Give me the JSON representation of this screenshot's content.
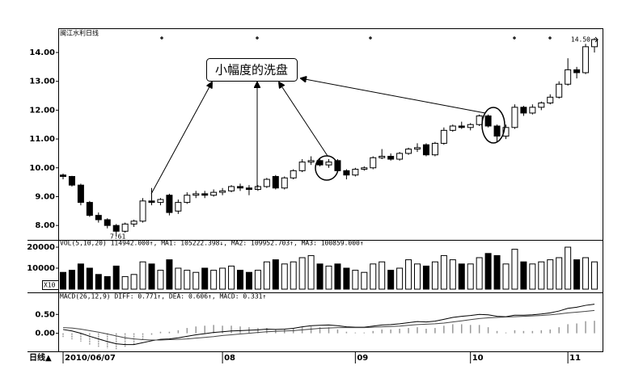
{
  "chart_data": [
    {
      "type": "candlestick",
      "title": "闽江水利日线",
      "categories": [
        "2010/06/07",
        null,
        null,
        null,
        null,
        null,
        null,
        null,
        null,
        null,
        null,
        null,
        null,
        null,
        null,
        null,
        null,
        null,
        "08",
        null,
        null,
        null,
        null,
        null,
        null,
        null,
        null,
        null,
        null,
        null,
        null,
        null,
        null,
        "09",
        null,
        null,
        null,
        null,
        null,
        null,
        null,
        null,
        null,
        null,
        null,
        null,
        "10",
        null,
        null,
        null,
        null,
        null,
        null,
        null,
        null,
        null,
        null,
        "11",
        null,
        null,
        null
      ],
      "open": [
        9.75,
        9.7,
        9.4,
        8.8,
        8.35,
        8.2,
        8.0,
        7.8,
        8.05,
        8.15,
        8.85,
        8.8,
        9.05,
        8.5,
        8.8,
        9.05,
        9.1,
        9.05,
        9.15,
        9.2,
        9.35,
        9.3,
        9.25,
        9.35,
        9.7,
        9.3,
        9.65,
        9.9,
        10.2,
        10.25,
        10.1,
        10.25,
        9.9,
        9.75,
        9.95,
        10.0,
        10.35,
        10.4,
        10.3,
        10.5,
        10.65,
        10.8,
        10.45,
        10.85,
        11.3,
        11.45,
        11.4,
        11.5,
        11.8,
        11.45,
        11.1,
        11.4,
        12.1,
        11.9,
        12.1,
        12.25,
        12.45,
        12.9,
        13.4,
        13.3,
        14.2
      ],
      "high": [
        9.8,
        9.72,
        9.45,
        8.85,
        8.45,
        8.25,
        8.05,
        8.1,
        8.2,
        8.95,
        9.3,
        8.95,
        9.1,
        8.9,
        9.15,
        9.2,
        9.2,
        9.25,
        9.3,
        9.4,
        9.45,
        9.4,
        9.4,
        9.65,
        9.75,
        9.7,
        9.95,
        10.3,
        10.4,
        10.3,
        10.3,
        10.3,
        9.95,
        10.0,
        10.05,
        10.4,
        10.65,
        10.5,
        10.55,
        10.7,
        10.85,
        10.85,
        10.9,
        11.4,
        11.5,
        11.6,
        11.55,
        11.85,
        11.85,
        11.5,
        11.5,
        12.2,
        12.15,
        12.2,
        12.3,
        12.55,
        13.0,
        13.8,
        13.5,
        14.3,
        14.5
      ],
      "low": [
        9.6,
        9.35,
        8.7,
        8.3,
        8.1,
        7.9,
        7.61,
        7.75,
        7.95,
        8.1,
        8.7,
        8.7,
        8.35,
        8.4,
        8.75,
        8.95,
        8.95,
        9.0,
        9.05,
        9.15,
        9.2,
        9.05,
        9.2,
        9.3,
        9.25,
        9.25,
        9.6,
        9.85,
        10.1,
        10.05,
        10.0,
        9.85,
        9.6,
        9.7,
        9.9,
        9.95,
        10.3,
        10.25,
        10.25,
        10.45,
        10.55,
        10.4,
        10.4,
        10.8,
        11.25,
        11.35,
        11.3,
        11.45,
        11.4,
        10.9,
        11.0,
        11.35,
        11.8,
        11.85,
        12.0,
        12.2,
        12.4,
        12.85,
        13.1,
        13.25,
        14.0
      ],
      "close": [
        9.7,
        9.4,
        8.8,
        8.35,
        8.2,
        8.0,
        7.8,
        8.05,
        8.15,
        8.85,
        8.8,
        8.9,
        8.45,
        8.8,
        9.05,
        9.1,
        9.05,
        9.15,
        9.2,
        9.35,
        9.3,
        9.25,
        9.35,
        9.6,
        9.3,
        9.65,
        9.9,
        10.2,
        10.25,
        10.1,
        10.2,
        9.9,
        9.75,
        9.95,
        10.0,
        10.35,
        10.4,
        10.3,
        10.5,
        10.65,
        10.7,
        10.45,
        10.85,
        11.3,
        11.45,
        11.4,
        11.5,
        11.8,
        11.45,
        11.1,
        11.4,
        12.1,
        11.9,
        12.1,
        12.25,
        12.45,
        12.9,
        13.4,
        13.3,
        14.2,
        14.45
      ],
      "up_color": "#ffffff",
      "down_color": "#000000",
      "max_label": "14.50",
      "min_label": "7.61",
      "annotation": "小幅度的洗盘",
      "ylim": [
        7.5,
        14.84
      ],
      "yticks": [
        {
          "value": 8,
          "label": "8.00"
        },
        {
          "value": 9,
          "label": "9.00"
        },
        {
          "value": 10,
          "label": "10.00"
        },
        {
          "value": 11,
          "label": "11.00"
        },
        {
          "value": 12,
          "label": "12.00"
        },
        {
          "value": 13,
          "label": "13.00"
        },
        {
          "value": 14,
          "label": "14.00"
        }
      ]
    },
    {
      "type": "bar",
      "legend": "VOL(5,10,20) 114942.000↑, MA1: 105222.398↓, MA2: 109952.703↑, MA3: 100859.000↑",
      "unit": "X10",
      "values": [
        8000,
        9000,
        12000,
        10000,
        7000,
        6000,
        11000,
        6000,
        7000,
        13000,
        12000,
        9000,
        14000,
        10000,
        9000,
        8000,
        10000,
        9000,
        10000,
        11000,
        9000,
        8000,
        9000,
        13000,
        14000,
        12000,
        13000,
        15000,
        16000,
        12000,
        11000,
        12000,
        10000,
        9000,
        8000,
        12000,
        13000,
        9000,
        10000,
        14000,
        12000,
        11000,
        13000,
        16000,
        14000,
        12000,
        12000,
        15000,
        17000,
        16000,
        12000,
        19000,
        13000,
        12000,
        13000,
        14000,
        15000,
        20000,
        14000,
        15000,
        13000
      ],
      "ylim": [
        0,
        22700
      ],
      "yticks": [
        10000,
        20000
      ]
    },
    {
      "type": "macd",
      "legend": "MACD(26,12,9) DIFF: 0.771↑, DEA: 0.606↑, MACD: 0.331↑",
      "series": [
        {
          "name": "DIFF",
          "color": "#000000",
          "values": [
            0.1,
            0.06,
            0.0,
            -0.08,
            -0.15,
            -0.22,
            -0.28,
            -0.3,
            -0.3,
            -0.25,
            -0.2,
            -0.16,
            -0.15,
            -0.12,
            -0.08,
            -0.04,
            -0.01,
            0.02,
            0.04,
            0.06,
            0.07,
            0.08,
            0.09,
            0.11,
            0.1,
            0.11,
            0.13,
            0.17,
            0.2,
            0.21,
            0.22,
            0.2,
            0.17,
            0.16,
            0.16,
            0.19,
            0.22,
            0.23,
            0.25,
            0.28,
            0.31,
            0.3,
            0.32,
            0.37,
            0.42,
            0.45,
            0.47,
            0.5,
            0.49,
            0.45,
            0.44,
            0.48,
            0.48,
            0.49,
            0.51,
            0.54,
            0.59,
            0.66,
            0.69,
            0.74,
            0.771
          ]
        },
        {
          "name": "DEA",
          "color": "#444444",
          "values": [
            0.15,
            0.14,
            0.11,
            0.07,
            0.03,
            -0.02,
            -0.07,
            -0.12,
            -0.15,
            -0.17,
            -0.18,
            -0.18,
            -0.17,
            -0.16,
            -0.15,
            -0.13,
            -0.11,
            -0.09,
            -0.06,
            -0.04,
            -0.02,
            0.0,
            0.02,
            0.04,
            0.05,
            0.06,
            0.07,
            0.09,
            0.11,
            0.13,
            0.14,
            0.15,
            0.15,
            0.15,
            0.15,
            0.16,
            0.17,
            0.18,
            0.19,
            0.21,
            0.23,
            0.24,
            0.25,
            0.27,
            0.3,
            0.33,
            0.36,
            0.39,
            0.41,
            0.42,
            0.43,
            0.44,
            0.45,
            0.46,
            0.47,
            0.49,
            0.51,
            0.54,
            0.56,
            0.58,
            0.606
          ]
        },
        {
          "name": "MACD",
          "color": "#999999",
          "values": [
            -0.1,
            -0.16,
            -0.22,
            -0.3,
            -0.36,
            -0.4,
            -0.42,
            -0.36,
            -0.3,
            -0.16,
            -0.04,
            0.04,
            0.04,
            0.08,
            0.14,
            0.18,
            0.2,
            0.22,
            0.2,
            0.2,
            0.18,
            0.16,
            0.14,
            0.14,
            0.1,
            0.1,
            0.12,
            0.16,
            0.18,
            0.16,
            0.16,
            0.1,
            0.04,
            0.02,
            0.02,
            0.06,
            0.1,
            0.1,
            0.12,
            0.14,
            0.16,
            0.12,
            0.14,
            0.2,
            0.24,
            0.24,
            0.22,
            0.22,
            0.16,
            0.06,
            0.02,
            0.08,
            0.06,
            0.06,
            0.08,
            0.1,
            0.16,
            0.24,
            0.26,
            0.32,
            0.331
          ]
        }
      ],
      "ylim": [
        -0.48,
        1.02
      ],
      "yticks": [
        {
          "value": 0,
          "label": "0.00"
        },
        {
          "value": 0.5,
          "label": "0.50"
        }
      ]
    },
    {
      "type": "footer",
      "label": "日线▲"
    }
  ]
}
